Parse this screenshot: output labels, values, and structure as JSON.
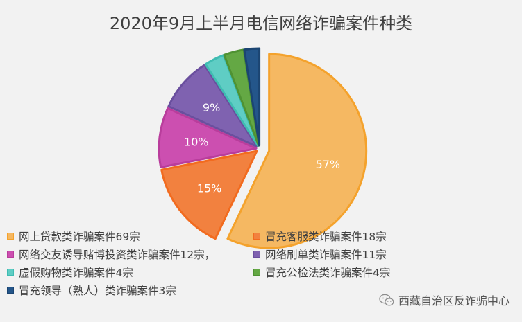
{
  "chart_data": {
    "type": "pie",
    "title": "2020年9月上半月电信网络诈骗案件种类",
    "categories": [
      "网上贷款类诈骗案件69宗",
      "冒充客服类诈骗案件18宗",
      "网络交友诱导赌博投资类诈骗案件12宗，",
      "网络刷单类诈骗案件11宗",
      "虚假购物类诈骗案件4宗",
      "冒充公检法类诈骗案件4宗",
      "冒充领导（熟人）类诈骗案件3宗"
    ],
    "values": [
      69,
      18,
      12,
      11,
      4,
      4,
      3
    ],
    "data_labels": [
      "57%",
      "15%",
      "10%",
      "9%",
      "",
      "",
      ""
    ],
    "colors": [
      "#f5b862",
      "#f2813f",
      "#cc4fb0",
      "#7f62b0",
      "#5fcdc4",
      "#64a844",
      "#24568a"
    ],
    "edge_colors": [
      "#f4a22c",
      "#f26b1f",
      "#b93d9c",
      "#6a4f9e",
      "#3fbcb2",
      "#4f9233",
      "#1b4572"
    ],
    "exploded": true,
    "legend_position": "bottom"
  },
  "watermark": {
    "icon": "wechat-icon",
    "text": "西藏自治区反诈骗中心"
  }
}
